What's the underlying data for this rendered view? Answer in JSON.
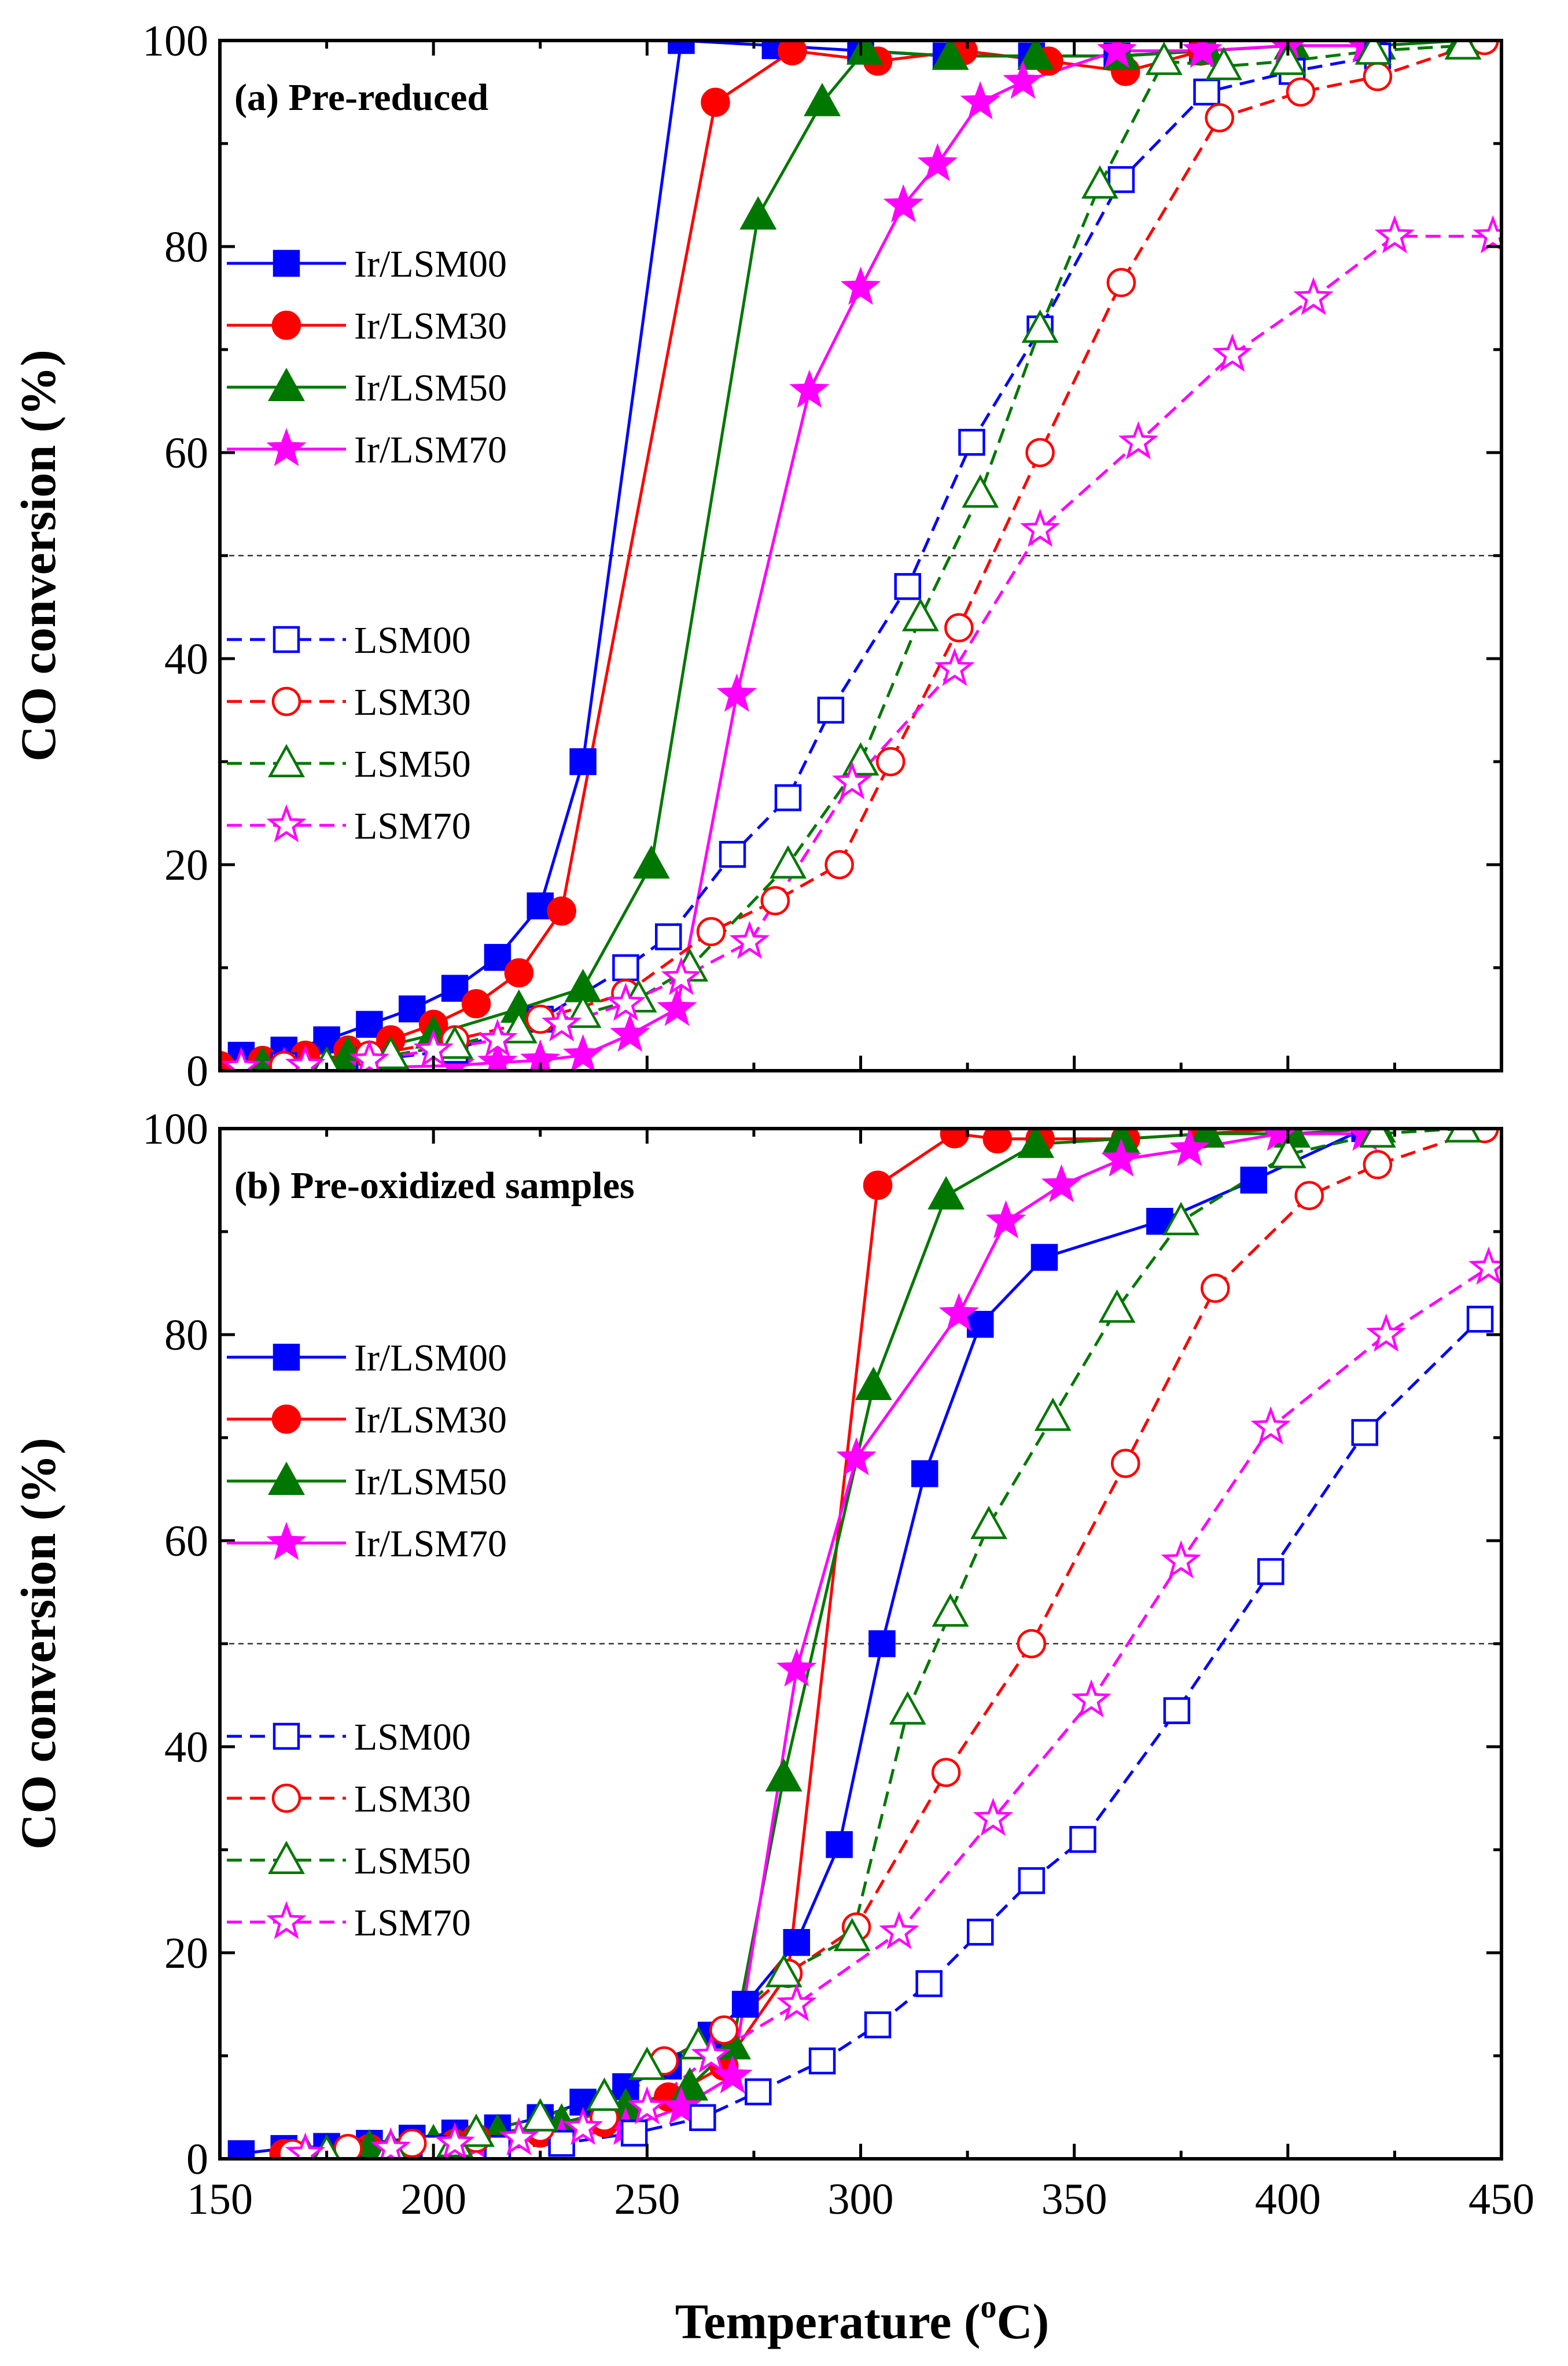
{
  "chart_data": {
    "type": "line",
    "xlabel": "Temperature (oC)",
    "xlabel_parts": {
      "prefix": "Temperature (",
      "superscript": "o",
      "suffix": "C)"
    },
    "xlim": [
      150,
      450
    ],
    "xticks": [
      "150",
      "200",
      "250",
      "300",
      "350",
      "400",
      "450"
    ],
    "ylim": [
      0,
      100
    ],
    "yticks": [
      "0",
      "20",
      "40",
      "60",
      "80",
      "100"
    ],
    "reference_line_y": 50,
    "panels": [
      {
        "title": "(a) Pre-reduced",
        "ylabel": "CO conversion (%)",
        "series": [
          {
            "name": "Ir/LSM00",
            "color": "#0000ff",
            "marker": "square",
            "filled": true,
            "dashed": false,
            "x": [
              155,
              165,
              175,
              185,
              195,
              205,
              215,
              225,
              235,
              258,
              280,
              300,
              320,
              340,
              360,
              380
            ],
            "y": [
              1.5,
              2,
              3,
              4.5,
              6,
              8,
              11,
              16,
              30,
              100,
              99.5,
              99,
              98.5,
              98.5,
              98.5,
              99
            ]
          },
          {
            "name": "Ir/LSM30",
            "color": "#ff0000",
            "marker": "circle",
            "filled": true,
            "dashed": false,
            "x": [
              150,
              160,
              170,
              180,
              190,
              200,
              210,
              220,
              230,
              266,
              284,
              304,
              324,
              344,
              362,
              380
            ],
            "y": [
              0.5,
              1,
              1.5,
              2,
              3,
              4.5,
              6.5,
              9.5,
              15.5,
              94,
              99,
              98,
              99,
              98,
              97,
              99
            ]
          },
          {
            "name": "Ir/LSM50",
            "color": "#007700",
            "marker": "triangle",
            "filled": true,
            "dashed": false,
            "x": [
              160,
              180,
              200,
              220,
              235,
              251,
              276,
              291,
              301,
              321,
              341,
              361,
              381,
              401,
              421,
              441
            ],
            "y": [
              0.5,
              1.5,
              3.5,
              6,
              8,
              20,
              83,
              94,
              99,
              98.5,
              98.5,
              98.5,
              99,
              99.5,
              99.5,
              100
            ]
          },
          {
            "name": "Ir/LSM70",
            "color": "#ff00ff",
            "marker": "star",
            "filled": true,
            "dashed": false,
            "x": [
              165,
              185,
              205,
              215,
              225,
              235,
              246,
              257,
              271,
              288,
              300,
              310,
              318,
              328,
              338,
              360,
              380,
              400,
              418
            ],
            "y": [
              0.3,
              0.3,
              0.5,
              0.8,
              1,
              1.5,
              3.5,
              6,
              36.5,
              66,
              76,
              84,
              88,
              94,
              96,
              99,
              99,
              99.5,
              99.5
            ]
          },
          {
            "name": "LSM00",
            "color": "#0000ff",
            "marker": "square",
            "filled": false,
            "dashed": true,
            "x": [
              165,
              185,
              205,
              225,
              245,
              255,
              270,
              283,
              293,
              311,
              326,
              342,
              361,
              381,
              401,
              421
            ],
            "y": [
              0.5,
              1,
              2,
              5,
              10,
              13,
              21,
              26.5,
              35,
              47,
              61,
              72,
              86.5,
              95,
              97,
              98.5
            ]
          },
          {
            "name": "LSM30",
            "color": "#ff0000",
            "marker": "circle",
            "filled": false,
            "dashed": true,
            "x": [
              165,
              185,
              205,
              225,
              245,
              265,
              280,
              295,
              307,
              323,
              342,
              361,
              384,
              403,
              421,
              446
            ],
            "y": [
              0.5,
              1.5,
              3,
              5,
              7.5,
              13.5,
              16.5,
              20,
              30,
              43,
              60,
              76.5,
              92.5,
              95,
              96.5,
              100
            ]
          },
          {
            "name": "LSM50",
            "color": "#007700",
            "marker": "triangle",
            "filled": false,
            "dashed": true,
            "x": [
              175,
              190,
              205,
              220,
              235,
              248,
              260,
              283,
              300,
              314,
              328,
              342,
              356,
              371,
              385,
              400,
              420,
              441
            ],
            "y": [
              0.5,
              1.5,
              2.5,
              4,
              5.5,
              7,
              10,
              20,
              30,
              44,
              56,
              72,
              86,
              98,
              97.5,
              98,
              99,
              99.5
            ]
          },
          {
            "name": "LSM70",
            "color": "#ff00ff",
            "marker": "star",
            "filled": false,
            "dashed": true,
            "x": [
              155,
              170,
              185,
              200,
              215,
              230,
              245,
              258,
              274,
              298,
              322,
              342,
              365,
              387,
              406,
              425,
              448
            ],
            "y": [
              0.3,
              0.5,
              1,
              2,
              3,
              4.5,
              6.5,
              9,
              12.5,
              28,
              39,
              52.5,
              61,
              69.5,
              75,
              81,
              81
            ]
          }
        ]
      },
      {
        "title": "(b) Pre-oxidized samples",
        "ylabel": "CO conversion (%)",
        "series": [
          {
            "name": "Ir/LSM00",
            "color": "#0000ff",
            "marker": "square",
            "filled": true,
            "dashed": false,
            "x": [
              155,
              165,
              175,
              185,
              195,
              205,
              215,
              225,
              235,
              245,
              255,
              265,
              273,
              285,
              295,
              305,
              315,
              328,
              343,
              370,
              392,
              418
            ],
            "y": [
              0.5,
              1,
              1.2,
              1.5,
              2,
              2.5,
              3,
              4,
              5.5,
              7,
              9,
              12,
              15,
              21,
              30.5,
              50,
              66.5,
              81,
              87.5,
              91,
              95,
              100
            ]
          },
          {
            "name": "Ir/LSM30",
            "color": "#ff0000",
            "marker": "circle",
            "filled": true,
            "dashed": false,
            "x": [
              165,
              185,
              205,
              225,
              240,
              255,
              268,
              283,
              304,
              322,
              332,
              342,
              362,
              380,
              400
            ],
            "y": [
              0.5,
              1,
              1.5,
              2.5,
              3.5,
              6,
              9,
              18,
              94.5,
              99.5,
              99,
              99,
              99,
              99.5,
              100
            ]
          },
          {
            "name": "Ir/LSM50",
            "color": "#007700",
            "marker": "triangle",
            "filled": true,
            "dashed": false,
            "x": [
              170,
              185,
              200,
              215,
              230,
              245,
              260,
              270,
              282,
              303,
              320,
              341,
              361,
              381,
              401,
              421
            ],
            "y": [
              0.5,
              1,
              1.5,
              2.5,
              3.5,
              5,
              7,
              11,
              37,
              75,
              93.5,
              98.5,
              99,
              99.5,
              99.5,
              100
            ]
          },
          {
            "name": "Ir/LSM70",
            "color": "#ff00ff",
            "marker": "star",
            "filled": true,
            "dashed": false,
            "x": [
              170,
              190,
              210,
              230,
              245,
              258,
              270,
              285,
              299,
              323,
              334,
              347,
              361,
              377,
              398,
              418
            ],
            "y": [
              0.5,
              1,
              1.5,
              2,
              3,
              5,
              8,
              47.5,
              68,
              82,
              91,
              94.5,
              97,
              98,
              99.5,
              99.5
            ]
          },
          {
            "name": "LSM00",
            "color": "#0000ff",
            "marker": "square",
            "filled": false,
            "dashed": true,
            "x": [
              180,
              200,
              215,
              230,
              247,
              263,
              276,
              291,
              304,
              316,
              328,
              340,
              352,
              374,
              396,
              418,
              445
            ],
            "y": [
              0.5,
              1,
              1,
              1.5,
              2.5,
              4,
              6.5,
              9.5,
              13,
              17,
              22,
              27,
              31,
              43.5,
              57,
              70.5,
              81.5
            ]
          },
          {
            "name": "LSM30",
            "color": "#ff0000",
            "marker": "circle",
            "filled": false,
            "dashed": true,
            "x": [
              167,
              180,
              195,
              210,
              225,
              240,
              254,
              268,
              283,
              299,
              320,
              340,
              362,
              383,
              405,
              421,
              446
            ],
            "y": [
              0.5,
              1,
              1.5,
              2,
              3,
              4,
              9.5,
              12.5,
              18,
              22.5,
              37.5,
              50,
              67.5,
              84.5,
              93.5,
              96.5,
              100
            ]
          },
          {
            "name": "LSM50",
            "color": "#007700",
            "marker": "triangle",
            "filled": false,
            "dashed": true,
            "x": [
              175,
              190,
              205,
              210,
              225,
              240,
              250,
              262,
              282,
              298,
              311,
              321,
              330,
              345,
              360,
              375,
              400,
              421,
              441
            ],
            "y": [
              0.5,
              1,
              1.5,
              2.5,
              4,
              6,
              9,
              11,
              18,
              21.5,
              43.5,
              53,
              61.5,
              72,
              82.5,
              91,
              97.5,
              99.5,
              100
            ]
          },
          {
            "name": "LSM70",
            "color": "#ff00ff",
            "marker": "star",
            "filled": false,
            "dashed": true,
            "x": [
              170,
              190,
              205,
              220,
              235,
              250,
              265,
              285,
              309,
              331,
              354,
              375,
              396,
              423,
              447
            ],
            "y": [
              0.5,
              1,
              1.5,
              2,
              3,
              5,
              10,
              15,
              22,
              33,
              44.5,
              58,
              71,
              80,
              86.5
            ]
          }
        ]
      }
    ]
  }
}
